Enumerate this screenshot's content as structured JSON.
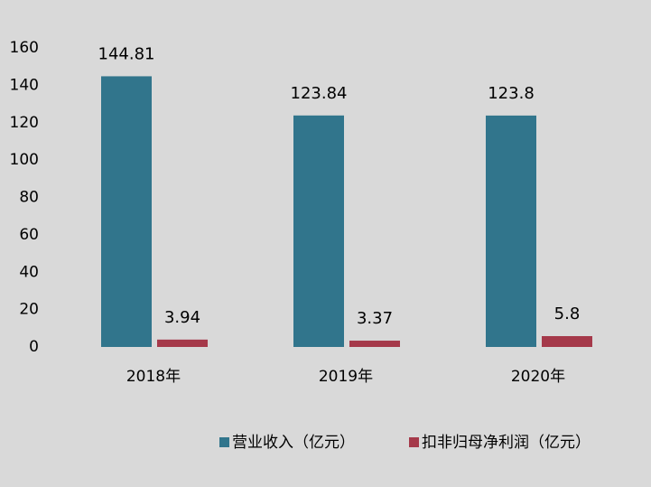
{
  "chart_data": {
    "type": "bar",
    "categories": [
      "2018年",
      "2019年",
      "2020年"
    ],
    "series": [
      {
        "name": "营业收入（亿元）",
        "color": "#31758c",
        "values": [
          144.81,
          123.84,
          123.8
        ]
      },
      {
        "name": "扣非归母净利润（亿元）",
        "color": "#a5394a",
        "values": [
          3.94,
          3.37,
          5.8
        ]
      }
    ],
    "ylim": [
      0,
      160
    ],
    "yticks": [
      0,
      20,
      40,
      60,
      80,
      100,
      120,
      140,
      160
    ],
    "grid": false,
    "legend": "bottom"
  }
}
